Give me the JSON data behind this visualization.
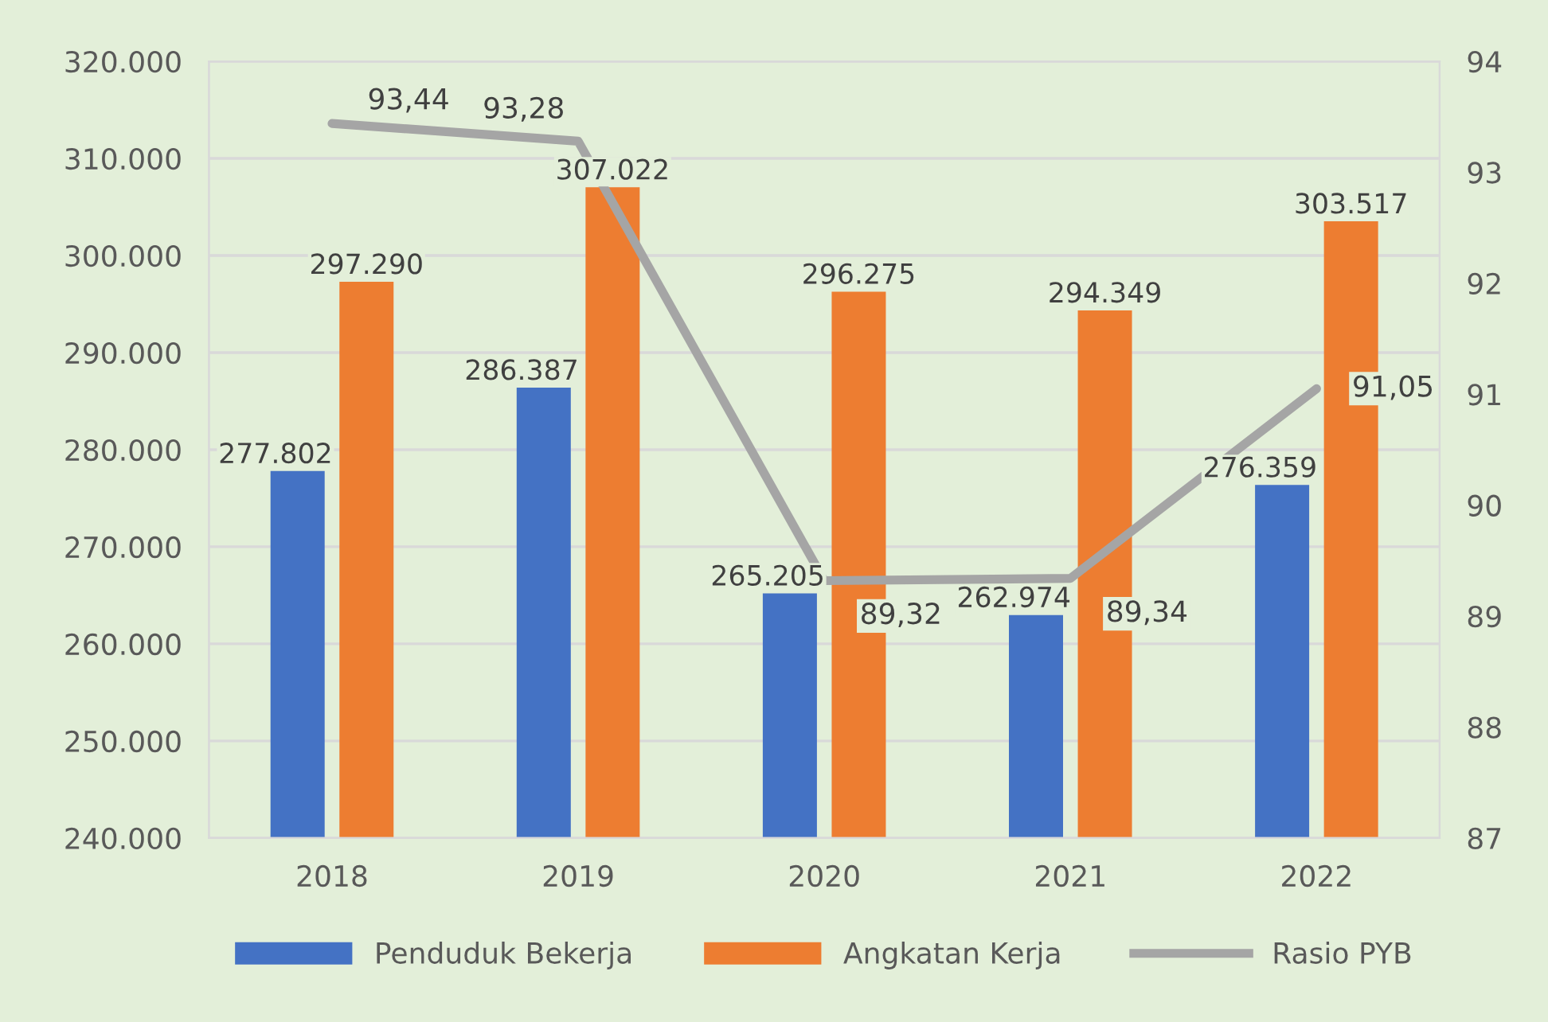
{
  "chart_data": {
    "type": "bar",
    "categories": [
      "2018",
      "2019",
      "2020",
      "2021",
      "2022"
    ],
    "series": [
      {
        "name": "Penduduk Bekerja",
        "color": "#4472c4",
        "values": [
          277802,
          286387,
          265205,
          262974,
          276359
        ],
        "value_labels": [
          "277.802",
          "286.387",
          "265.205",
          "262.974",
          "276.359"
        ]
      },
      {
        "name": "Angkatan Kerja",
        "color": "#ed7d31",
        "values": [
          297290,
          307022,
          296275,
          294349,
          303517
        ],
        "value_labels": [
          "297.290",
          "307.022",
          "296.275",
          "294.349",
          "303.517"
        ]
      },
      {
        "name": "Rasio PYB",
        "type": "line",
        "axis": "y2",
        "color": "#a5a5a5",
        "values": [
          93.44,
          93.28,
          89.32,
          89.34,
          91.05
        ],
        "value_labels": [
          "93,44",
          "93,28",
          "89,32",
          "89,34",
          "91,05"
        ]
      }
    ],
    "ylim": [
      240000,
      320000
    ],
    "yticks": [
      {
        "value": 240000,
        "label": "240.000"
      },
      {
        "value": 250000,
        "label": "250.000"
      },
      {
        "value": 260000,
        "label": "260.000"
      },
      {
        "value": 270000,
        "label": "270.000"
      },
      {
        "value": 280000,
        "label": "280.000"
      },
      {
        "value": 290000,
        "label": "290.000"
      },
      {
        "value": 300000,
        "label": "300.000"
      },
      {
        "value": 310000,
        "label": "310.000"
      },
      {
        "value": 320000,
        "label": "320.000"
      }
    ],
    "y2lim": [
      87,
      94
    ],
    "y2ticks": [
      87,
      88,
      89,
      90,
      91,
      92,
      93,
      94
    ],
    "grid": "y",
    "legend": "bottom",
    "marker": "none",
    "line_style": "solid"
  }
}
